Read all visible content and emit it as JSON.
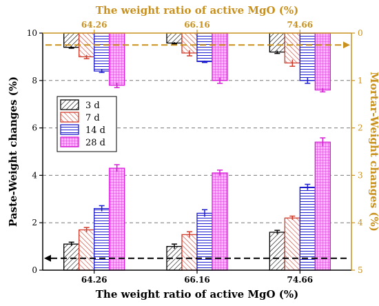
{
  "chart_data": {
    "type": "bar",
    "title_top": "The weight ratio of active MgO (%)",
    "xlabel": "The weight ratio of active MgO (%)",
    "ylabel_left": "Paste-Weight changes (%)",
    "ylabel_right": "Mortar-Weight changes (%)",
    "categories": [
      "64.26",
      "66.16",
      "74.66"
    ],
    "top_tick_labels": [
      "64.26",
      "66.16",
      "74.66"
    ],
    "ylim_left": [
      0,
      10
    ],
    "yticks_left": [
      "0",
      "2",
      "4",
      "6",
      "8",
      "10"
    ],
    "ylim_right": [
      5,
      0
    ],
    "yticks_right": [
      "0",
      "1",
      "2",
      "3",
      "4",
      "5"
    ],
    "legend_placement": "left-middle",
    "series_names": [
      "3 d",
      "7 d",
      "14 d",
      "28 d"
    ],
    "paste_series": [
      {
        "name": "3 d",
        "values": [
          1.1,
          1.0,
          1.6
        ],
        "errors": [
          0.08,
          0.1,
          0.08
        ]
      },
      {
        "name": "7 d",
        "values": [
          1.7,
          1.5,
          2.2
        ],
        "errors": [
          0.1,
          0.12,
          0.08
        ]
      },
      {
        "name": "14 d",
        "values": [
          2.6,
          2.4,
          3.5
        ],
        "errors": [
          0.12,
          0.15,
          0.12
        ]
      },
      {
        "name": "28 d",
        "values": [
          4.3,
          4.1,
          5.4
        ],
        "errors": [
          0.15,
          0.12,
          0.18
        ]
      }
    ],
    "mortar_series": [
      {
        "name": "3 d",
        "values": [
          0.3,
          0.21,
          0.4
        ],
        "errors": [
          0.02,
          0.02,
          0.03
        ]
      },
      {
        "name": "7 d",
        "values": [
          0.5,
          0.42,
          0.63
        ],
        "errors": [
          0.04,
          0.06,
          0.07
        ]
      },
      {
        "name": "14 d",
        "values": [
          0.8,
          0.6,
          1.0
        ],
        "errors": [
          0.03,
          0.02,
          0.06
        ]
      },
      {
        "name": "28 d",
        "values": [
          1.1,
          1.0,
          1.2
        ],
        "errors": [
          0.05,
          0.06,
          0.04
        ]
      }
    ],
    "dashed_mortar_baseline": 0.25,
    "dashed_paste_baseline": 0.5,
    "grid_lines_left": [
      2,
      4,
      6,
      8
    ],
    "colors": {
      "3 d": "#000000",
      "7 d": "#d23a2a",
      "14 d": "#1a1ad0",
      "28 d": "#d61cd6",
      "top_axis": "#c8901e",
      "left_axis": "#000000"
    }
  }
}
